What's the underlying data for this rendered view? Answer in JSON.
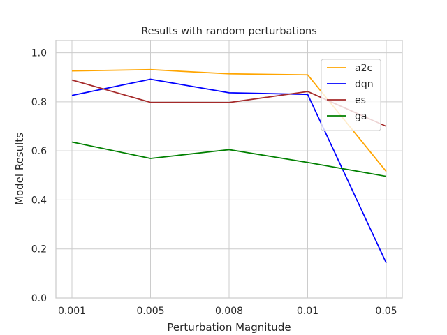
{
  "chart_data": {
    "type": "line",
    "title": "Results with random perturbations",
    "xlabel": "Perturbation Magnitude",
    "ylabel": "Model Results",
    "categories": [
      "0.001",
      "0.005",
      "0.008",
      "0.01",
      "0.05"
    ],
    "ylim": [
      0,
      1.05
    ],
    "yticks": [
      "0.0",
      "0.2",
      "0.4",
      "0.6",
      "0.8",
      "1.0"
    ],
    "grid": true,
    "legend_position": "top-right",
    "series": [
      {
        "name": "a2c",
        "color": "#ffa500",
        "values": [
          0.926,
          0.931,
          0.914,
          0.91,
          0.516
        ]
      },
      {
        "name": "dqn",
        "color": "#0000ff",
        "values": [
          0.826,
          0.892,
          0.837,
          0.83,
          0.143
        ]
      },
      {
        "name": "es",
        "color": "#a52a2a",
        "values": [
          0.889,
          0.798,
          0.797,
          0.842,
          0.7
        ]
      },
      {
        "name": "ga",
        "color": "#008000",
        "values": [
          0.636,
          0.569,
          0.605,
          0.553,
          0.496
        ]
      }
    ]
  }
}
